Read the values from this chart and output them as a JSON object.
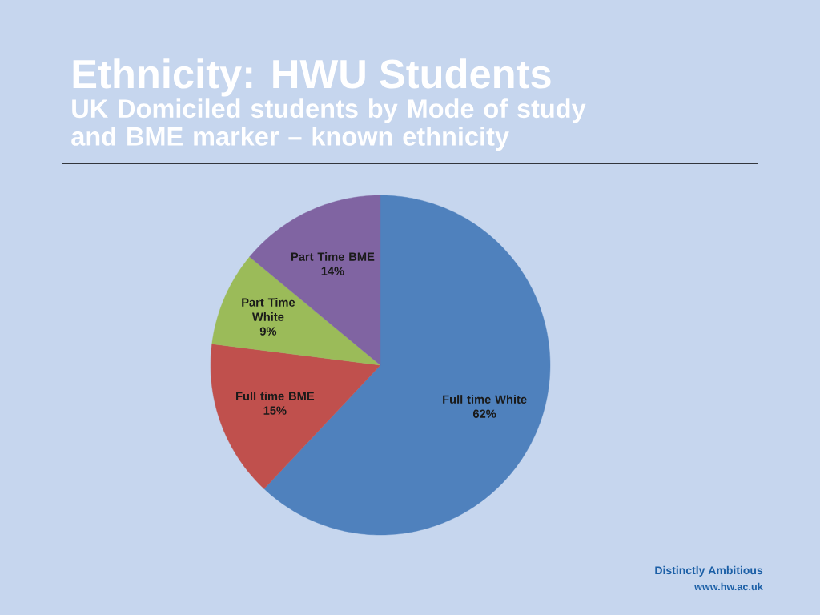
{
  "chart_data": {
    "type": "pie",
    "title": "Ethnicity: HWU Students",
    "subtitle": "UK Domiciled students by Mode of study and BME marker – known ethnicity",
    "categories": [
      "Full time White",
      "Full time BME",
      "Part Time White",
      "Part Time  BME"
    ],
    "values": [
      62,
      15,
      9,
      14
    ],
    "colors": [
      "#4f81bd",
      "#c0504d",
      "#9bbb59",
      "#8064a2"
    ],
    "value_labels": [
      "62%",
      "15%",
      "9%",
      "14%"
    ],
    "annotations": [
      "Distinctly Ambitious",
      "www.hw.ac.uk"
    ]
  }
}
